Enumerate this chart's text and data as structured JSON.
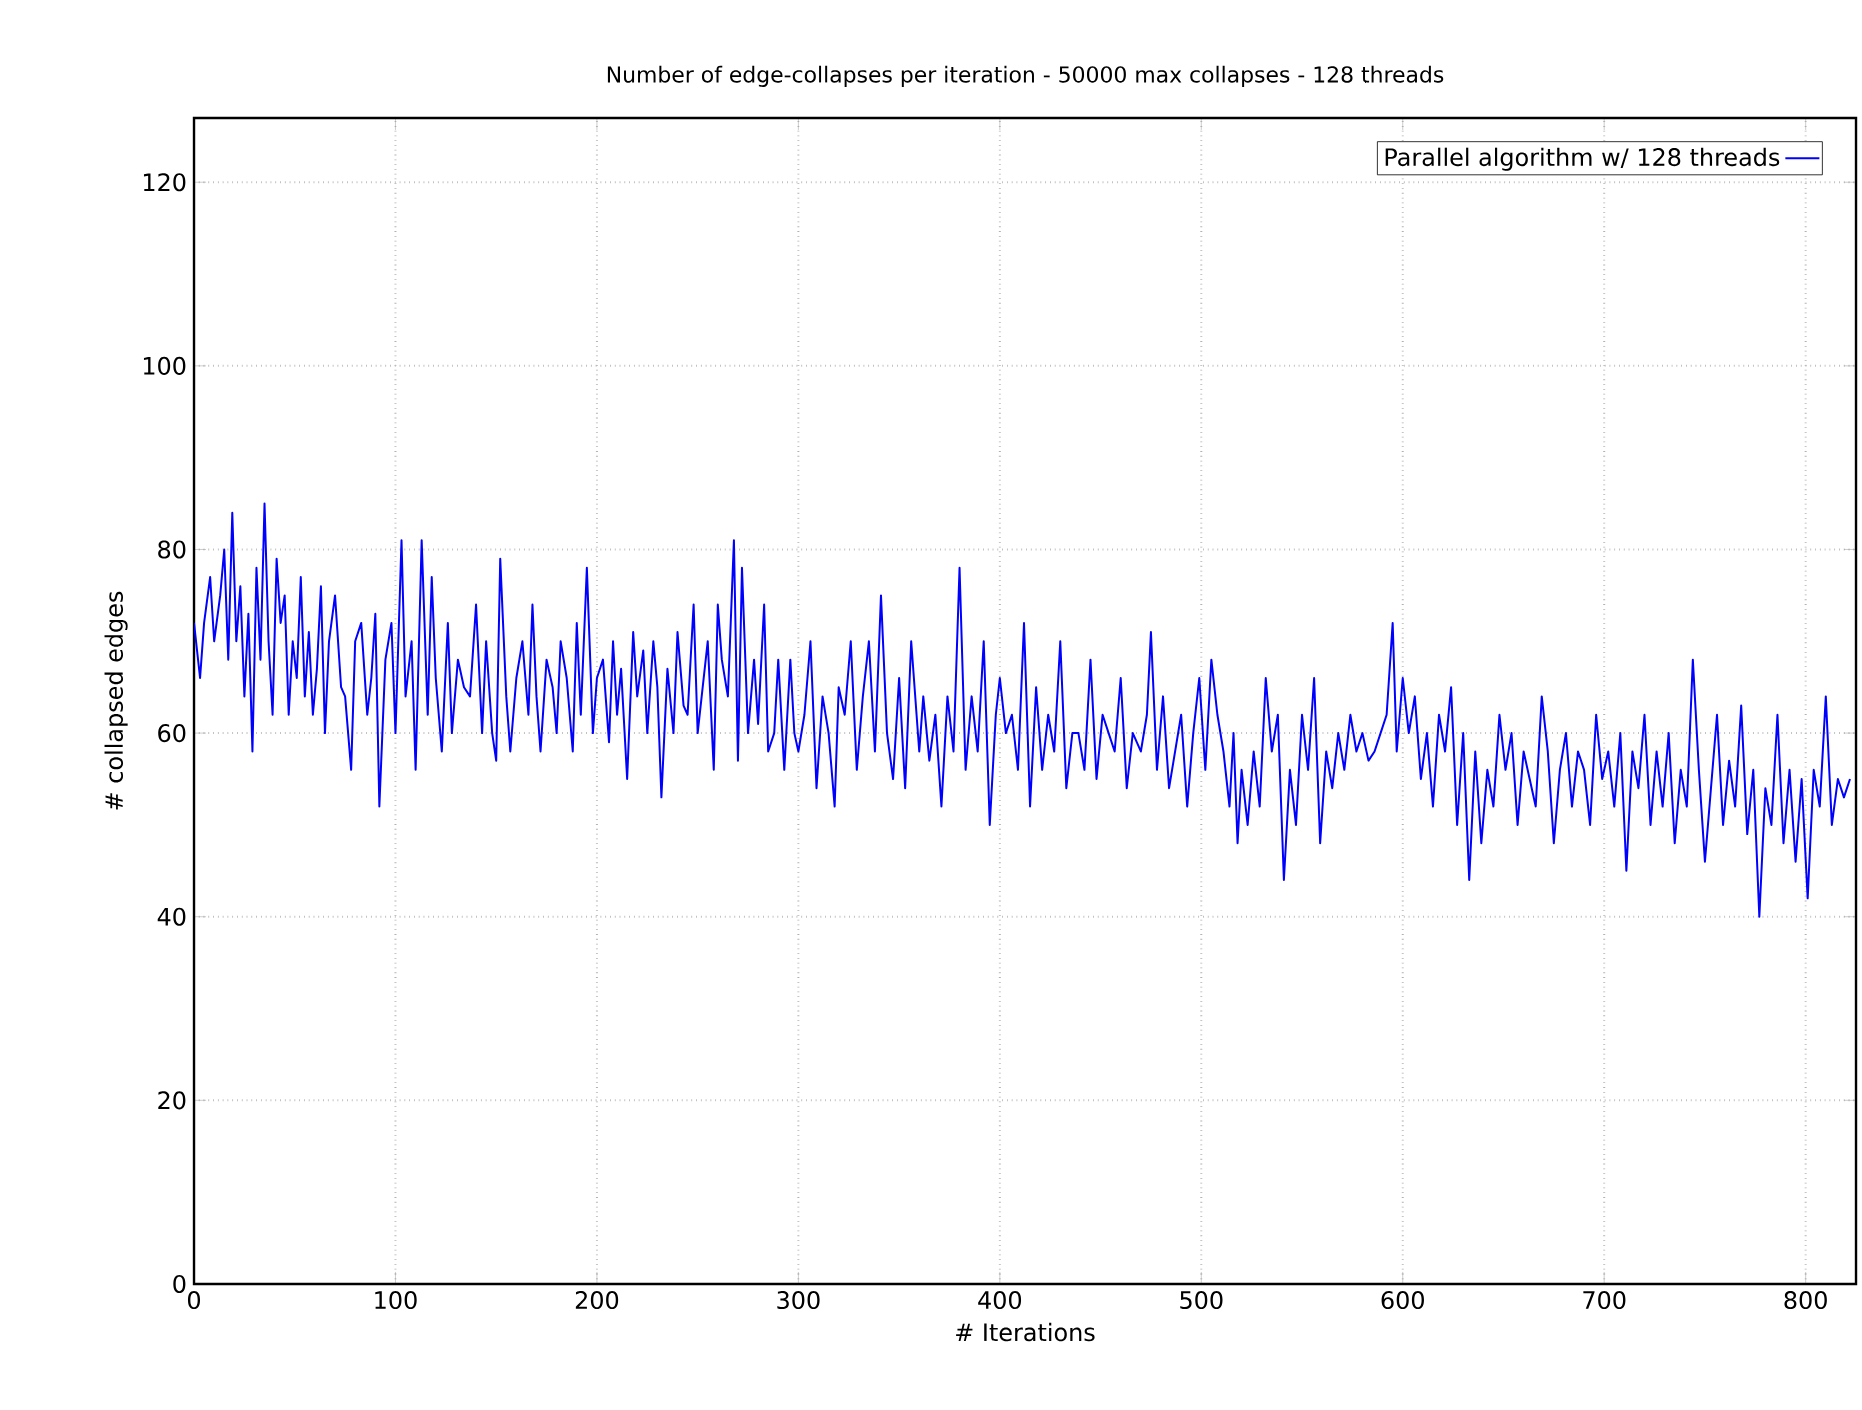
{
  "chart_data": {
    "type": "line",
    "title": "Number of edge-collapses per iteration - 50000 max collapses - 128 threads",
    "xlabel": "# Iterations",
    "ylabel": "# collapsed edges",
    "x": [
      0,
      3,
      5,
      8,
      10,
      13,
      15,
      17,
      19,
      21,
      23,
      25,
      27,
      29,
      31,
      33,
      35,
      37,
      39,
      41,
      43,
      45,
      47,
      49,
      51,
      53,
      55,
      57,
      59,
      61,
      63,
      65,
      67,
      70,
      73,
      75,
      78,
      80,
      83,
      86,
      88,
      90,
      92,
      95,
      98,
      100,
      103,
      105,
      108,
      110,
      113,
      116,
      118,
      120,
      123,
      126,
      128,
      131,
      134,
      137,
      140,
      143,
      145,
      148,
      150,
      152,
      155,
      157,
      160,
      163,
      166,
      168,
      170,
      172,
      175,
      178,
      180,
      182,
      185,
      188,
      190,
      192,
      195,
      198,
      200,
      203,
      206,
      208,
      210,
      212,
      215,
      218,
      220,
      223,
      225,
      228,
      230,
      232,
      235,
      238,
      240,
      243,
      245,
      248,
      250,
      252,
      255,
      258,
      260,
      262,
      265,
      268,
      270,
      272,
      275,
      278,
      280,
      283,
      285,
      288,
      290,
      293,
      296,
      298,
      300,
      303,
      306,
      309,
      312,
      315,
      318,
      320,
      323,
      326,
      329,
      332,
      335,
      338,
      341,
      344,
      347,
      350,
      353,
      356,
      360,
      362,
      365,
      368,
      371,
      374,
      377,
      380,
      383,
      386,
      389,
      392,
      395,
      398,
      400,
      403,
      406,
      409,
      412,
      415,
      418,
      421,
      424,
      427,
      430,
      433,
      436,
      439,
      442,
      445,
      448,
      451,
      454,
      457,
      460,
      463,
      466,
      470,
      473,
      475,
      478,
      481,
      484,
      487,
      490,
      493,
      496,
      499,
      502,
      505,
      508,
      511,
      514,
      516,
      518,
      520,
      523,
      526,
      529,
      532,
      535,
      538,
      541,
      544,
      547,
      550,
      553,
      556,
      559,
      562,
      565,
      568,
      571,
      574,
      577,
      580,
      583,
      586,
      589,
      592,
      595,
      597,
      600,
      603,
      606,
      609,
      612,
      615,
      618,
      621,
      624,
      627,
      630,
      633,
      636,
      639,
      642,
      645,
      648,
      651,
      654,
      657,
      660,
      663,
      666,
      669,
      672,
      675,
      678,
      681,
      684,
      687,
      690,
      693,
      696,
      699,
      702,
      705,
      708,
      711,
      714,
      717,
      720,
      723,
      726,
      729,
      732,
      735,
      738,
      741,
      744,
      747,
      750,
      753,
      756,
      759,
      762,
      765,
      768,
      771,
      774,
      777,
      780,
      783,
      786,
      789,
      792,
      795,
      798,
      801,
      804,
      807,
      810,
      813,
      816,
      819,
      822
    ],
    "series": [
      {
        "name": "Parallel algorithm w/ 128 threads",
        "color": "#0000ff",
        "values": [
          72,
          66,
          72,
          77,
          70,
          75,
          80,
          68,
          84,
          70,
          76,
          64,
          73,
          58,
          78,
          68,
          85,
          70,
          62,
          79,
          72,
          75,
          62,
          70,
          66,
          77,
          64,
          71,
          62,
          67,
          76,
          60,
          70,
          75,
          65,
          64,
          56,
          70,
          72,
          62,
          66,
          73,
          52,
          68,
          72,
          60,
          81,
          64,
          70,
          56,
          81,
          62,
          77,
          66,
          58,
          72,
          60,
          68,
          65,
          64,
          74,
          60,
          70,
          60,
          57,
          79,
          64,
          58,
          66,
          70,
          62,
          74,
          64,
          58,
          68,
          65,
          60,
          70,
          66,
          58,
          72,
          62,
          78,
          60,
          66,
          68,
          59,
          70,
          62,
          67,
          55,
          71,
          64,
          69,
          60,
          70,
          65,
          53,
          67,
          60,
          71,
          63,
          62,
          74,
          60,
          64,
          70,
          56,
          74,
          68,
          64,
          81,
          57,
          78,
          60,
          68,
          61,
          74,
          58,
          60,
          68,
          56,
          68,
          60,
          58,
          62,
          70,
          54,
          64,
          60,
          52,
          65,
          62,
          70,
          56,
          64,
          70,
          58,
          75,
          60,
          55,
          66,
          54,
          70,
          58,
          64,
          57,
          62,
          52,
          64,
          58,
          78,
          56,
          64,
          58,
          70,
          50,
          62,
          66,
          60,
          62,
          56,
          72,
          52,
          65,
          56,
          62,
          58,
          70,
          54,
          60,
          60,
          56,
          68,
          55,
          62,
          60,
          58,
          66,
          54,
          60,
          58,
          62,
          71,
          56,
          64,
          54,
          58,
          62,
          52,
          60,
          66,
          56,
          68,
          62,
          58,
          52,
          60,
          48,
          56,
          50,
          58,
          52,
          66,
          58,
          62,
          44,
          56,
          50,
          62,
          56,
          66,
          48,
          58,
          54,
          60,
          56,
          62,
          58,
          60,
          57,
          58,
          60,
          62,
          72,
          58,
          66,
          60,
          64,
          55,
          60,
          52,
          62,
          58,
          65,
          50,
          60,
          44,
          58,
          48,
          56,
          52,
          62,
          56,
          60,
          50,
          58,
          55,
          52,
          64,
          58,
          48,
          56,
          60,
          52,
          58,
          56,
          50,
          62,
          55,
          58,
          52,
          60,
          45,
          58,
          54,
          62,
          50,
          58,
          52,
          60,
          48,
          56,
          52,
          68,
          56,
          46,
          54,
          62,
          50,
          57,
          52,
          63,
          49,
          56,
          40,
          54,
          50,
          62,
          48,
          56,
          46,
          55,
          42,
          56,
          52,
          64,
          50,
          55,
          53,
          55
        ]
      }
    ],
    "xlim": [
      0,
      825
    ],
    "ylim": [
      0,
      127
    ],
    "xticks": [
      0,
      100,
      200,
      300,
      400,
      500,
      600,
      700,
      800
    ],
    "yticks": [
      0,
      20,
      40,
      60,
      80,
      100,
      120
    ],
    "grid": true,
    "legend": "top right"
  }
}
